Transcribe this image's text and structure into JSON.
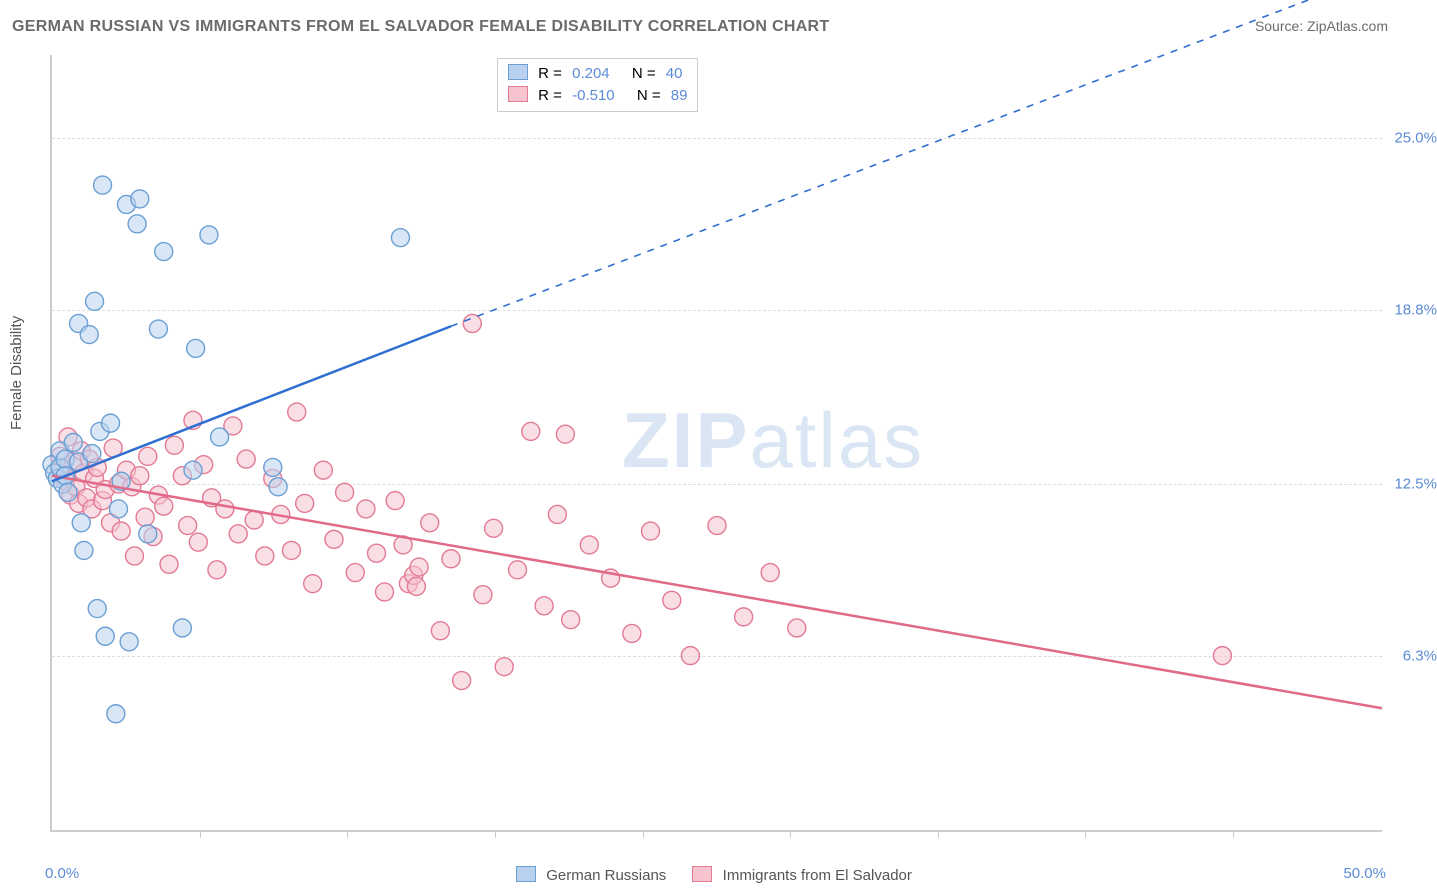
{
  "title": "GERMAN RUSSIAN VS IMMIGRANTS FROM EL SALVADOR FEMALE DISABILITY CORRELATION CHART",
  "source_label": "Source: ZipAtlas.com",
  "y_axis_title": "Female Disability",
  "watermark_bold": "ZIP",
  "watermark_light": "atlas",
  "chart": {
    "type": "scatter",
    "x_range": [
      0,
      50
    ],
    "y_range": [
      0,
      28
    ],
    "x_tick_step_pct": 11.1,
    "y_gridlines": [
      6.3,
      12.5,
      18.8,
      25.0
    ],
    "y_tick_labels": [
      "6.3%",
      "12.5%",
      "18.8%",
      "25.0%"
    ],
    "x_label_min": "0.0%",
    "x_label_max": "50.0%",
    "background_color": "#ffffff",
    "grid_color": "#dddddd",
    "axis_color": "#cccccc",
    "tick_label_color": "#5b8bd4",
    "marker_radius": 9,
    "marker_stroke_width": 1.4,
    "trend_line_width": 2.5,
    "series": [
      {
        "id": "german_russians",
        "label": "German Russians",
        "fill": "#b9d1ee",
        "stroke": "#6a9fd4",
        "fill_opacity": 0.55,
        "R_label": "R =",
        "R": "0.204",
        "N_label": "N =",
        "N": "40",
        "trend": {
          "x1": 0,
          "y1": 12.6,
          "x2_solid": 15,
          "y2_solid": 18.2,
          "x2": 50,
          "y2": 31.0,
          "color": "#2f6fd0"
        },
        "points": [
          [
            0.0,
            13.2
          ],
          [
            0.1,
            12.9
          ],
          [
            0.2,
            12.7
          ],
          [
            0.3,
            13.1
          ],
          [
            0.3,
            13.7
          ],
          [
            0.4,
            12.5
          ],
          [
            0.5,
            13.4
          ],
          [
            0.5,
            12.8
          ],
          [
            0.6,
            12.2
          ],
          [
            0.8,
            14.0
          ],
          [
            1.0,
            13.3
          ],
          [
            1.0,
            18.3
          ],
          [
            1.1,
            11.1
          ],
          [
            1.2,
            10.1
          ],
          [
            1.4,
            17.9
          ],
          [
            1.5,
            13.6
          ],
          [
            1.6,
            19.1
          ],
          [
            1.7,
            8.0
          ],
          [
            1.8,
            14.4
          ],
          [
            1.9,
            23.3
          ],
          [
            2.0,
            7.0
          ],
          [
            2.2,
            14.7
          ],
          [
            2.4,
            4.2
          ],
          [
            2.5,
            11.6
          ],
          [
            2.6,
            12.6
          ],
          [
            2.8,
            22.6
          ],
          [
            2.9,
            6.8
          ],
          [
            3.2,
            21.9
          ],
          [
            3.3,
            22.8
          ],
          [
            3.6,
            10.7
          ],
          [
            4.0,
            18.1
          ],
          [
            4.2,
            20.9
          ],
          [
            4.9,
            7.3
          ],
          [
            5.3,
            13.0
          ],
          [
            5.4,
            17.4
          ],
          [
            5.9,
            21.5
          ],
          [
            6.3,
            14.2
          ],
          [
            8.3,
            13.1
          ],
          [
            8.5,
            12.4
          ],
          [
            13.1,
            21.4
          ]
        ]
      },
      {
        "id": "el_salvador",
        "label": "Immigrants from El Salvador",
        "fill": "#f6c3cf",
        "stroke": "#e27a93",
        "fill_opacity": 0.55,
        "R_label": "R =",
        "R": "-0.510",
        "N_label": "N =",
        "N": "89",
        "trend": {
          "x1": 0,
          "y1": 12.8,
          "x2_solid": 50,
          "y2_solid": 4.4,
          "x2": 50,
          "y2": 4.4,
          "color": "#e06a87"
        },
        "points": [
          [
            0.3,
            13.5
          ],
          [
            0.4,
            13.1
          ],
          [
            0.5,
            12.6
          ],
          [
            0.6,
            14.2
          ],
          [
            0.7,
            12.1
          ],
          [
            0.8,
            13.3
          ],
          [
            0.9,
            12.4
          ],
          [
            1.0,
            11.8
          ],
          [
            1.1,
            13.7
          ],
          [
            1.2,
            12.9
          ],
          [
            1.3,
            12.0
          ],
          [
            1.4,
            13.4
          ],
          [
            1.5,
            11.6
          ],
          [
            1.6,
            12.7
          ],
          [
            1.7,
            13.1
          ],
          [
            1.9,
            11.9
          ],
          [
            2.0,
            12.3
          ],
          [
            2.2,
            11.1
          ],
          [
            2.3,
            13.8
          ],
          [
            2.5,
            12.5
          ],
          [
            2.6,
            10.8
          ],
          [
            2.8,
            13.0
          ],
          [
            3.0,
            12.4
          ],
          [
            3.1,
            9.9
          ],
          [
            3.3,
            12.8
          ],
          [
            3.5,
            11.3
          ],
          [
            3.6,
            13.5
          ],
          [
            3.8,
            10.6
          ],
          [
            4.0,
            12.1
          ],
          [
            4.2,
            11.7
          ],
          [
            4.4,
            9.6
          ],
          [
            4.6,
            13.9
          ],
          [
            4.9,
            12.8
          ],
          [
            5.1,
            11.0
          ],
          [
            5.3,
            14.8
          ],
          [
            5.5,
            10.4
          ],
          [
            5.7,
            13.2
          ],
          [
            6.0,
            12.0
          ],
          [
            6.2,
            9.4
          ],
          [
            6.5,
            11.6
          ],
          [
            6.8,
            14.6
          ],
          [
            7.0,
            10.7
          ],
          [
            7.3,
            13.4
          ],
          [
            7.6,
            11.2
          ],
          [
            8.0,
            9.9
          ],
          [
            8.3,
            12.7
          ],
          [
            8.6,
            11.4
          ],
          [
            9.0,
            10.1
          ],
          [
            9.2,
            15.1
          ],
          [
            9.5,
            11.8
          ],
          [
            9.8,
            8.9
          ],
          [
            10.2,
            13.0
          ],
          [
            10.6,
            10.5
          ],
          [
            11.0,
            12.2
          ],
          [
            11.4,
            9.3
          ],
          [
            11.8,
            11.6
          ],
          [
            12.2,
            10.0
          ],
          [
            12.5,
            8.6
          ],
          [
            12.9,
            11.9
          ],
          [
            13.2,
            10.3
          ],
          [
            13.4,
            8.9
          ],
          [
            13.6,
            9.2
          ],
          [
            13.7,
            8.8
          ],
          [
            13.8,
            9.5
          ],
          [
            14.2,
            11.1
          ],
          [
            14.6,
            7.2
          ],
          [
            15.0,
            9.8
          ],
          [
            15.4,
            5.4
          ],
          [
            15.8,
            18.3
          ],
          [
            16.2,
            8.5
          ],
          [
            16.6,
            10.9
          ],
          [
            17.0,
            5.9
          ],
          [
            17.5,
            9.4
          ],
          [
            18.0,
            14.4
          ],
          [
            18.5,
            8.1
          ],
          [
            19.0,
            11.4
          ],
          [
            19.3,
            14.3
          ],
          [
            19.5,
            7.6
          ],
          [
            20.2,
            10.3
          ],
          [
            21.0,
            9.1
          ],
          [
            21.8,
            7.1
          ],
          [
            22.5,
            10.8
          ],
          [
            23.3,
            8.3
          ],
          [
            24.0,
            6.3
          ],
          [
            25.0,
            11.0
          ],
          [
            26.0,
            7.7
          ],
          [
            27.0,
            9.3
          ],
          [
            28.0,
            7.3
          ],
          [
            44.0,
            6.3
          ]
        ]
      }
    ]
  }
}
